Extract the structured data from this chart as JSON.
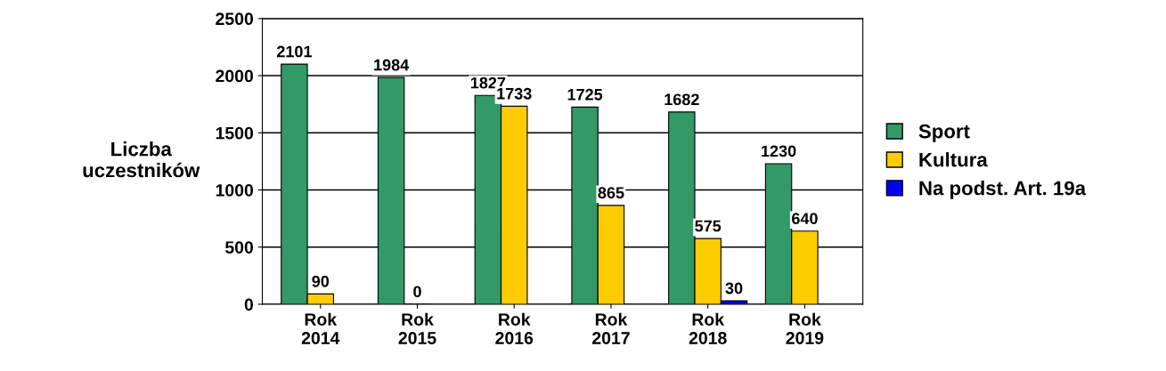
{
  "chart_data": {
    "type": "bar",
    "ylabel": "Liczba uczestników",
    "categories": [
      "Rok 2014",
      "Rok 2015",
      "Rok 2016",
      "Rok 2017",
      "Rok 2018",
      "Rok 2019"
    ],
    "series": [
      {
        "name": "Sport",
        "color": "#339966",
        "values": [
          2101,
          1984,
          1827,
          1725,
          1682,
          1230
        ]
      },
      {
        "name": "Kultura",
        "color": "#ffcc00",
        "values": [
          90,
          0,
          1733,
          865,
          575,
          640
        ]
      },
      {
        "name": "Na podst. Art. 19a",
        "color": "#0000ff",
        "values": [
          null,
          null,
          null,
          null,
          30,
          null
        ]
      }
    ],
    "ylim": [
      0,
      2500
    ],
    "yticks": [
      0,
      500,
      1000,
      1500,
      2000,
      2500
    ],
    "grid": "y",
    "legend": "right",
    "data_labels": true
  }
}
